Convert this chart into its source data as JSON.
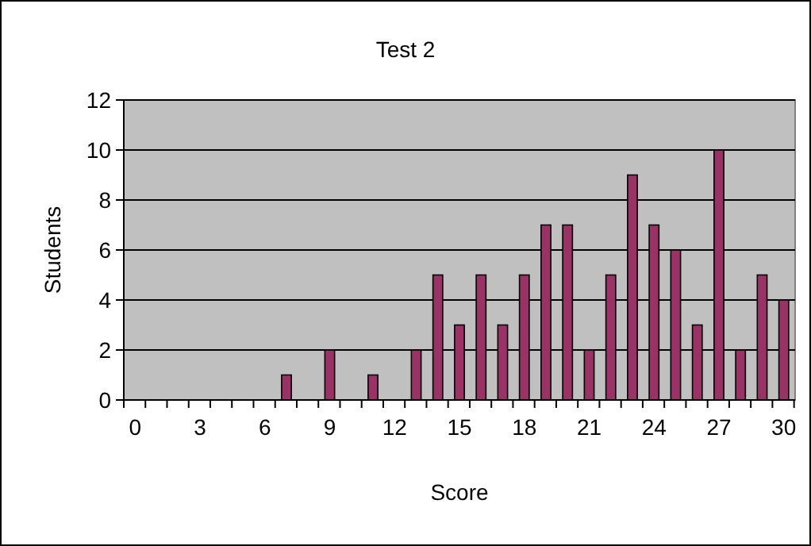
{
  "chart_data": {
    "type": "bar",
    "title": "Test 2",
    "xlabel": "Score",
    "ylabel": "Students",
    "categories": [
      "0",
      null,
      null,
      "3",
      null,
      null,
      "6",
      null,
      null,
      "9",
      null,
      null,
      "12",
      null,
      null,
      "15",
      null,
      null,
      "18",
      null,
      null,
      "21",
      null,
      null,
      "24",
      null,
      null,
      "27",
      null,
      null,
      "30"
    ],
    "values": [
      0,
      0,
      0,
      0,
      0,
      0,
      0,
      1,
      0,
      2,
      0,
      1,
      0,
      2,
      5,
      3,
      5,
      3,
      5,
      7,
      7,
      2,
      5,
      9,
      7,
      6,
      3,
      10,
      2,
      5,
      4
    ],
    "color": "#993366",
    "ylim": [
      0,
      12
    ],
    "yticks": [
      0,
      2,
      4,
      6,
      8,
      10,
      12
    ],
    "grid": "y"
  }
}
